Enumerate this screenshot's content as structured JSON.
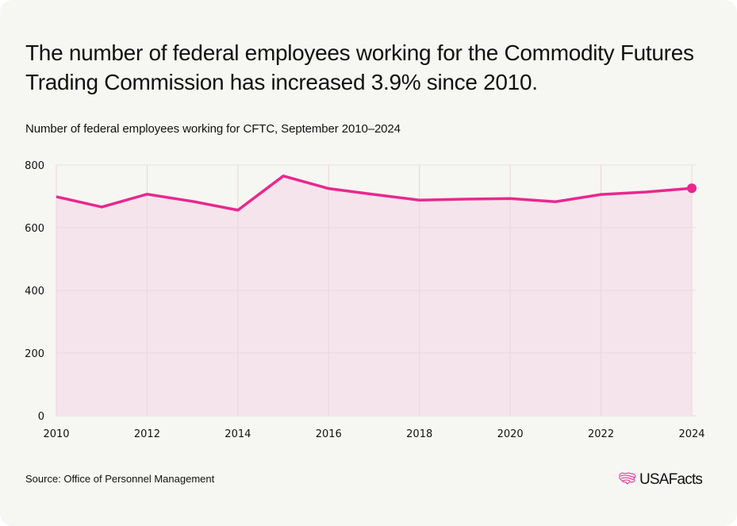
{
  "headline": "The number of federal employees working for the Commodity Futures Trading Commission has increased 3.9% since 2010.",
  "footer": {
    "source": "Source: Office of Personnel Management",
    "logo_text": "USAFacts",
    "logo_icon": "us-map-flag-icon"
  },
  "colors": {
    "background": "#f6f6f2",
    "line": "#e8288f",
    "fill": "#f5e4ec",
    "grid": "#e6e3e3",
    "text": "#111111"
  },
  "chart_data": {
    "type": "area",
    "title": "The number of federal employees working for the Commodity Futures Trading Commission has increased 3.9% since 2010.",
    "subtitle": "Number of federal employees working for CFTC, September 2010–2024",
    "xlabel": "",
    "ylabel": "",
    "x": [
      2010,
      2011,
      2012,
      2013,
      2014,
      2015,
      2016,
      2017,
      2018,
      2019,
      2020,
      2021,
      2022,
      2023,
      2024
    ],
    "series": [
      {
        "name": "CFTC federal employees",
        "values": [
          699,
          666,
          707,
          684,
          656,
          765,
          725,
          706,
          688,
          691,
          693,
          683,
          706,
          714,
          726
        ]
      }
    ],
    "xlim": [
      2010,
      2024
    ],
    "ylim": [
      0,
      800
    ],
    "x_ticks": [
      "2010",
      "2012",
      "2014",
      "2016",
      "2018",
      "2020",
      "2022",
      "2024"
    ],
    "y_ticks": [
      "0",
      "200",
      "400",
      "600",
      "800"
    ],
    "grid": true,
    "legend": "none",
    "annotations": [
      "endpoint marker at 2024"
    ]
  }
}
